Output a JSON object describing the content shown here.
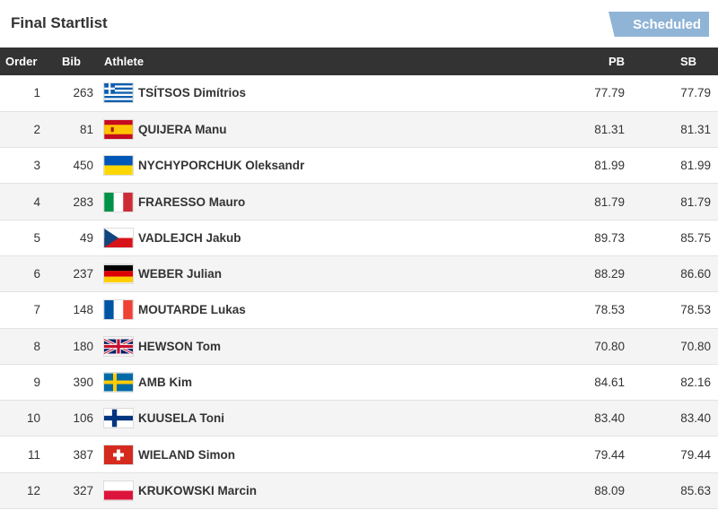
{
  "header": {
    "title": "Final Startlist",
    "status": "Scheduled"
  },
  "columns": {
    "order": "Order",
    "bib": "Bib",
    "athlete": "Athlete",
    "pb": "PB",
    "sb": "SB"
  },
  "rows": [
    {
      "order": "1",
      "bib": "263",
      "name": "TSÍTSOS Dimítrios",
      "country": "greece",
      "pb": "77.79",
      "sb": "77.79"
    },
    {
      "order": "2",
      "bib": "81",
      "name": "QUIJERA Manu",
      "country": "spain",
      "pb": "81.31",
      "sb": "81.31"
    },
    {
      "order": "3",
      "bib": "450",
      "name": "NYCHYPORCHUK Oleksandr",
      "country": "ukraine",
      "pb": "81.99",
      "sb": "81.99"
    },
    {
      "order": "4",
      "bib": "283",
      "name": "FRARESSO Mauro",
      "country": "italy",
      "pb": "81.79",
      "sb": "81.79"
    },
    {
      "order": "5",
      "bib": "49",
      "name": "VADLEJCH Jakub",
      "country": "czech-republic",
      "pb": "89.73",
      "sb": "85.75"
    },
    {
      "order": "6",
      "bib": "237",
      "name": "WEBER Julian",
      "country": "germany",
      "pb": "88.29",
      "sb": "86.60"
    },
    {
      "order": "7",
      "bib": "148",
      "name": "MOUTARDE Lukas",
      "country": "france",
      "pb": "78.53",
      "sb": "78.53"
    },
    {
      "order": "8",
      "bib": "180",
      "name": "HEWSON Tom",
      "country": "great-britain",
      "pb": "70.80",
      "sb": "70.80"
    },
    {
      "order": "9",
      "bib": "390",
      "name": "AMB Kim",
      "country": "sweden",
      "pb": "84.61",
      "sb": "82.16"
    },
    {
      "order": "10",
      "bib": "106",
      "name": "KUUSELA Toni",
      "country": "finland",
      "pb": "83.40",
      "sb": "83.40"
    },
    {
      "order": "11",
      "bib": "387",
      "name": "WIELAND Simon",
      "country": "switzerland",
      "pb": "79.44",
      "sb": "79.44"
    },
    {
      "order": "12",
      "bib": "327",
      "name": "KRUKOWSKI Marcin",
      "country": "poland",
      "pb": "88.09",
      "sb": "85.63"
    }
  ],
  "icons": {
    "row_action": "plus-circle-icon"
  },
  "colors": {
    "header_bg": "#333333",
    "status_bg": "#8fb4d6",
    "zebra": "#f4f4f4",
    "action_icon": "#6b7478"
  }
}
